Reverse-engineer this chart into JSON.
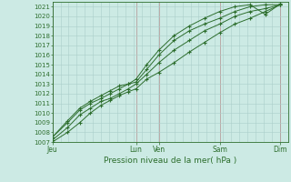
{
  "xlabel": "Pression niveau de la mer( hPa )",
  "background_color": "#cceae4",
  "grid_color": "#aacfca",
  "line_color": "#2d6e2d",
  "vline_color": "#b08080",
  "ylim": [
    1007,
    1021.5
  ],
  "yticks": [
    1007,
    1008,
    1009,
    1010,
    1011,
    1012,
    1013,
    1014,
    1015,
    1016,
    1017,
    1018,
    1019,
    1020,
    1021
  ],
  "xtick_labels": [
    "Jeu",
    "Lun",
    "Ven",
    "Sam",
    "Dim"
  ],
  "xtick_positions": [
    0,
    55,
    70,
    110,
    150
  ],
  "xvline_positions": [
    0,
    55,
    70,
    110,
    150
  ],
  "series": [
    {
      "x": [
        0,
        10,
        18,
        25,
        32,
        38,
        44,
        50,
        55,
        62,
        70,
        80,
        90,
        100,
        110,
        120,
        130,
        140,
        150
      ],
      "y": [
        1007.0,
        1008.0,
        1009.0,
        1010.0,
        1010.8,
        1011.3,
        1011.8,
        1012.2,
        1012.5,
        1013.5,
        1014.2,
        1015.2,
        1016.3,
        1017.3,
        1018.3,
        1019.2,
        1019.8,
        1020.5,
        1021.2
      ]
    },
    {
      "x": [
        0,
        10,
        18,
        25,
        32,
        38,
        44,
        50,
        55,
        62,
        70,
        80,
        90,
        100,
        110,
        120,
        130,
        140,
        150
      ],
      "y": [
        1007.2,
        1008.5,
        1009.8,
        1010.5,
        1011.2,
        1011.5,
        1012.0,
        1012.5,
        1013.0,
        1014.0,
        1015.2,
        1016.5,
        1017.5,
        1018.5,
        1019.2,
        1020.0,
        1020.5,
        1020.8,
        1021.2
      ]
    },
    {
      "x": [
        0,
        10,
        18,
        25,
        32,
        38,
        44,
        50,
        55,
        62,
        70,
        80,
        90,
        100,
        110,
        120,
        130,
        140,
        150
      ],
      "y": [
        1007.5,
        1009.0,
        1010.3,
        1011.0,
        1011.5,
        1012.0,
        1012.5,
        1013.0,
        1013.2,
        1014.5,
        1016.0,
        1017.5,
        1018.5,
        1019.2,
        1019.8,
        1020.5,
        1021.0,
        1021.2,
        1021.2
      ]
    },
    {
      "x": [
        0,
        10,
        18,
        25,
        32,
        38,
        44,
        50,
        55,
        62,
        70,
        80,
        90,
        100,
        110,
        120,
        130,
        140,
        150
      ],
      "y": [
        1007.5,
        1009.2,
        1010.5,
        1011.2,
        1011.8,
        1012.3,
        1012.8,
        1013.0,
        1013.5,
        1015.0,
        1016.5,
        1018.0,
        1019.0,
        1019.8,
        1020.5,
        1021.0,
        1021.2,
        1020.2,
        1021.3
      ]
    }
  ],
  "xlim": [
    0,
    155
  ],
  "n_xgrid": 30,
  "figsize": [
    3.2,
    2.0
  ],
  "dpi": 100
}
